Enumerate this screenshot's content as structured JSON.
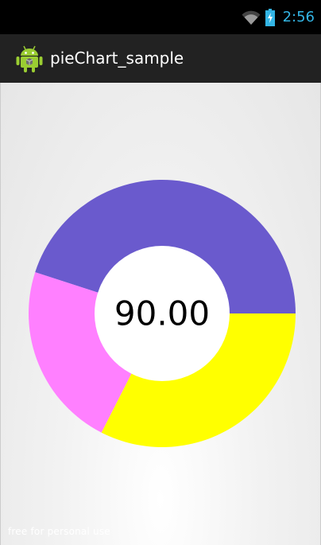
{
  "status_bar": {
    "time": "2:56",
    "icons": [
      "wifi-icon",
      "battery-charging-icon"
    ],
    "accent_color": "#33b5e5"
  },
  "action_bar": {
    "app_icon": "android-robot-icon",
    "title": "pieChart_sample"
  },
  "chart_data": {
    "type": "pie",
    "donut": true,
    "center_label": "90.00",
    "slices": [
      {
        "value": 45.0,
        "color": "#6a5acd"
      },
      {
        "value": 22.5,
        "color": "#ff80ff"
      },
      {
        "value": 32.5,
        "color": "#ffff00"
      }
    ],
    "start_angle_deg": 0,
    "direction": "clockwise"
  },
  "watermark": "free for personal use"
}
